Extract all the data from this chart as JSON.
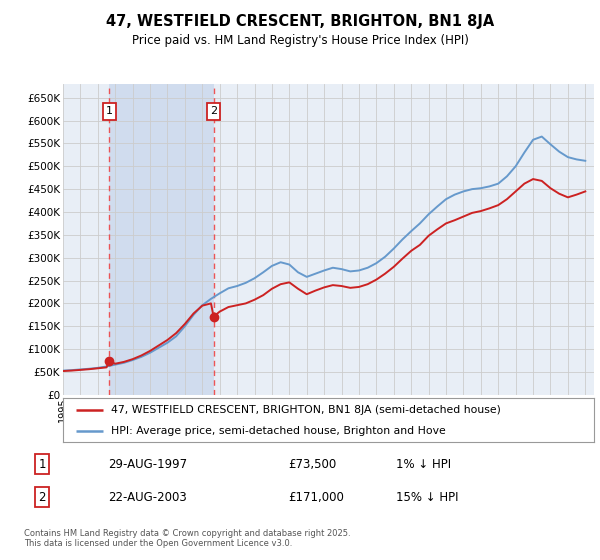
{
  "title": "47, WESTFIELD CRESCENT, BRIGHTON, BN1 8JA",
  "subtitle": "Price paid vs. HM Land Registry's House Price Index (HPI)",
  "legend_label1": "47, WESTFIELD CRESCENT, BRIGHTON, BN1 8JA (semi-detached house)",
  "legend_label2": "HPI: Average price, semi-detached house, Brighton and Hove",
  "footnote": "Contains HM Land Registry data © Crown copyright and database right 2025.\nThis data is licensed under the Open Government Licence v3.0.",
  "purchase1_label": "1",
  "purchase1_date": "29-AUG-1997",
  "purchase1_price": "£73,500",
  "purchase1_hpi": "1% ↓ HPI",
  "purchase2_label": "2",
  "purchase2_date": "22-AUG-2003",
  "purchase2_price": "£171,000",
  "purchase2_hpi": "15% ↓ HPI",
  "ylim": [
    0,
    680000
  ],
  "yticks": [
    0,
    50000,
    100000,
    150000,
    200000,
    250000,
    300000,
    350000,
    400000,
    450000,
    500000,
    550000,
    600000,
    650000
  ],
  "ytick_labels": [
    "£0",
    "£50K",
    "£100K",
    "£150K",
    "£200K",
    "£250K",
    "£300K",
    "£350K",
    "£400K",
    "£450K",
    "£500K",
    "£550K",
    "£600K",
    "£650K"
  ],
  "purchase1_x": 1997.65,
  "purchase1_y": 73500,
  "purchase2_x": 2003.65,
  "purchase2_y": 171000,
  "hpi_color": "#6699cc",
  "price_color": "#cc2222",
  "vline_color": "#ee4444",
  "marker_color": "#cc2222",
  "grid_color": "#cccccc",
  "bg_color": "#e8eef6",
  "shade_color": "#d0dcee",
  "xlim_left": 1995.0,
  "xlim_right": 2025.5,
  "hpi_data": [
    [
      1995.0,
      53000
    ],
    [
      1995.5,
      54000
    ],
    [
      1996.0,
      55500
    ],
    [
      1996.5,
      57000
    ],
    [
      1997.0,
      59000
    ],
    [
      1997.5,
      62000
    ],
    [
      1998.0,
      66000
    ],
    [
      1998.5,
      70000
    ],
    [
      1999.0,
      76000
    ],
    [
      1999.5,
      83000
    ],
    [
      2000.0,
      92000
    ],
    [
      2000.5,
      103000
    ],
    [
      2001.0,
      114000
    ],
    [
      2001.5,
      128000
    ],
    [
      2002.0,
      150000
    ],
    [
      2002.5,
      175000
    ],
    [
      2003.0,
      196000
    ],
    [
      2003.5,
      210000
    ],
    [
      2004.0,
      222000
    ],
    [
      2004.5,
      233000
    ],
    [
      2005.0,
      238000
    ],
    [
      2005.5,
      245000
    ],
    [
      2006.0,
      255000
    ],
    [
      2006.5,
      268000
    ],
    [
      2007.0,
      282000
    ],
    [
      2007.5,
      290000
    ],
    [
      2008.0,
      285000
    ],
    [
      2008.5,
      268000
    ],
    [
      2009.0,
      258000
    ],
    [
      2009.5,
      265000
    ],
    [
      2010.0,
      272000
    ],
    [
      2010.5,
      278000
    ],
    [
      2011.0,
      275000
    ],
    [
      2011.5,
      270000
    ],
    [
      2012.0,
      272000
    ],
    [
      2012.5,
      278000
    ],
    [
      2013.0,
      288000
    ],
    [
      2013.5,
      302000
    ],
    [
      2014.0,
      320000
    ],
    [
      2014.5,
      340000
    ],
    [
      2015.0,
      358000
    ],
    [
      2015.5,
      375000
    ],
    [
      2016.0,
      395000
    ],
    [
      2016.5,
      412000
    ],
    [
      2017.0,
      428000
    ],
    [
      2017.5,
      438000
    ],
    [
      2018.0,
      445000
    ],
    [
      2018.5,
      450000
    ],
    [
      2019.0,
      452000
    ],
    [
      2019.5,
      456000
    ],
    [
      2020.0,
      462000
    ],
    [
      2020.5,
      478000
    ],
    [
      2021.0,
      500000
    ],
    [
      2021.5,
      530000
    ],
    [
      2022.0,
      558000
    ],
    [
      2022.5,
      565000
    ],
    [
      2023.0,
      548000
    ],
    [
      2023.5,
      532000
    ],
    [
      2024.0,
      520000
    ],
    [
      2024.5,
      515000
    ],
    [
      2025.0,
      512000
    ]
  ],
  "price_data": [
    [
      1995.0,
      52000
    ],
    [
      1995.5,
      53000
    ],
    [
      1996.0,
      54500
    ],
    [
      1996.5,
      56000
    ],
    [
      1997.0,
      58000
    ],
    [
      1997.5,
      60000
    ],
    [
      1997.65,
      73500
    ],
    [
      1998.0,
      68000
    ],
    [
      1998.5,
      72000
    ],
    [
      1999.0,
      78000
    ],
    [
      1999.5,
      86000
    ],
    [
      2000.0,
      96000
    ],
    [
      2000.5,
      108000
    ],
    [
      2001.0,
      120000
    ],
    [
      2001.5,
      135000
    ],
    [
      2002.0,
      155000
    ],
    [
      2002.5,
      178000
    ],
    [
      2003.0,
      195000
    ],
    [
      2003.5,
      200000
    ],
    [
      2003.65,
      171000
    ],
    [
      2004.0,
      182000
    ],
    [
      2004.5,
      192000
    ],
    [
      2005.0,
      196000
    ],
    [
      2005.5,
      200000
    ],
    [
      2006.0,
      208000
    ],
    [
      2006.5,
      218000
    ],
    [
      2007.0,
      232000
    ],
    [
      2007.5,
      242000
    ],
    [
      2008.0,
      246000
    ],
    [
      2008.5,
      232000
    ],
    [
      2009.0,
      220000
    ],
    [
      2009.5,
      228000
    ],
    [
      2010.0,
      235000
    ],
    [
      2010.5,
      240000
    ],
    [
      2011.0,
      238000
    ],
    [
      2011.5,
      234000
    ],
    [
      2012.0,
      236000
    ],
    [
      2012.5,
      242000
    ],
    [
      2013.0,
      252000
    ],
    [
      2013.5,
      265000
    ],
    [
      2014.0,
      280000
    ],
    [
      2014.5,
      298000
    ],
    [
      2015.0,
      315000
    ],
    [
      2015.5,
      328000
    ],
    [
      2016.0,
      348000
    ],
    [
      2016.5,
      362000
    ],
    [
      2017.0,
      375000
    ],
    [
      2017.5,
      382000
    ],
    [
      2018.0,
      390000
    ],
    [
      2018.5,
      398000
    ],
    [
      2019.0,
      402000
    ],
    [
      2019.5,
      408000
    ],
    [
      2020.0,
      415000
    ],
    [
      2020.5,
      428000
    ],
    [
      2021.0,
      445000
    ],
    [
      2021.5,
      462000
    ],
    [
      2022.0,
      472000
    ],
    [
      2022.5,
      468000
    ],
    [
      2023.0,
      452000
    ],
    [
      2023.5,
      440000
    ],
    [
      2024.0,
      432000
    ],
    [
      2024.5,
      438000
    ],
    [
      2025.0,
      445000
    ]
  ]
}
